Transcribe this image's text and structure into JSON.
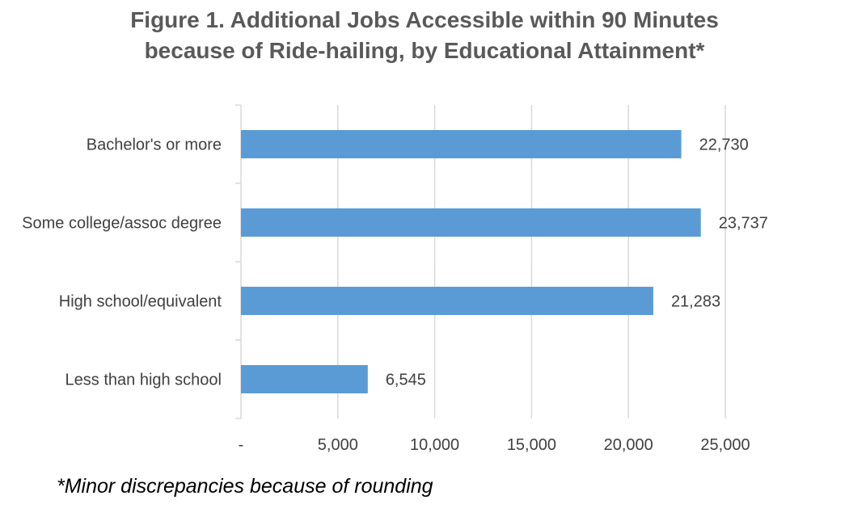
{
  "chart_data": {
    "type": "bar",
    "orientation": "horizontal",
    "title": [
      "Figure 1. Additional Jobs Accessible within 90 Minutes",
      "because of Ride-hailing, by Educational Attainment*"
    ],
    "categories": [
      "Bachelor's or more",
      "Some college/assoc degree",
      "High school/equivalent",
      "Less than high school"
    ],
    "values": [
      22730,
      23737,
      21283,
      6545
    ],
    "data_labels": [
      "22,730",
      "23,737",
      "21,283",
      "6,545"
    ],
    "xlim": [
      0,
      25000
    ],
    "ticks": [
      0,
      5000,
      10000,
      15000,
      20000,
      25000
    ],
    "tick_labels": [
      "-",
      "5,000",
      "10,000",
      "15,000",
      "20,000",
      "25,000"
    ],
    "grid": true,
    "legend": "none",
    "bar_color": "#5B9BD5",
    "footnote": "*Minor discrepancies because of rounding"
  }
}
